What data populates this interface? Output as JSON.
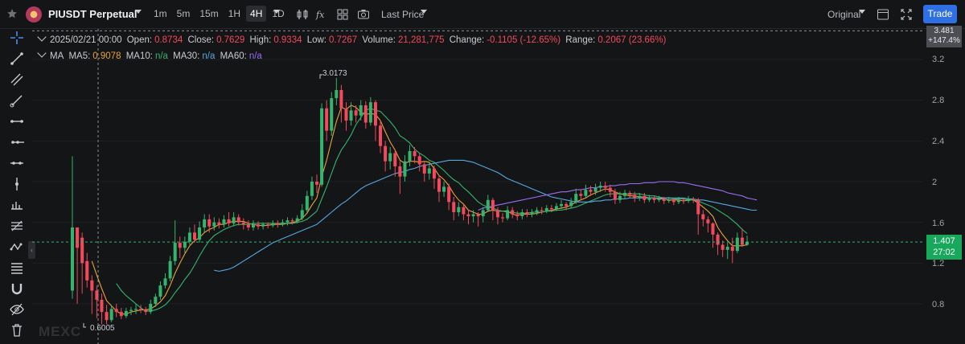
{
  "header": {
    "symbol": "PIUSDT Perpetual",
    "intervals": [
      "1m",
      "5m",
      "15m",
      "1H",
      "4H",
      "1D"
    ],
    "active_interval": "4H",
    "price_type": "Last Price",
    "scale_mode": "Original",
    "trade_label": "Trade"
  },
  "icons": {
    "favorite": "star-icon",
    "candle_type": "candlestick-icon",
    "indicators": "fx-icon",
    "layout": "grid-layout-icon",
    "snapshot": "camera-icon"
  },
  "ohlc": {
    "date": "2025/02/21 00:00",
    "open_label": "Open:",
    "open": "0.8734",
    "close_label": "Close:",
    "close": "0.7629",
    "high_label": "High:",
    "high": "0.9334",
    "low_label": "Low:",
    "low": "0.7267",
    "volume_label": "Volume:",
    "volume": "21,281,775",
    "change_label": "Change:",
    "change": "-0.1105 (-12.65%)",
    "range_label": "Range:",
    "range": "0.2067 (23.66%)"
  },
  "ma": {
    "label": "MA",
    "ma5_label": "MA5:",
    "ma5": "0.9078",
    "ma10_label": "MA10:",
    "ma10": "n/a",
    "ma30_label": "MA30:",
    "ma30": "n/a",
    "ma60_label": "MA60:",
    "ma60": "n/a"
  },
  "price_axis": {
    "ticks": [
      "3.2",
      "2.8",
      "2.4",
      "2",
      "1.6",
      "1.2",
      "0.8"
    ],
    "top_price": "3.481",
    "top_change": "+147.4%",
    "current_price": "1.407",
    "countdown": "27:02"
  },
  "annotations": {
    "high_marker": "3.0173",
    "low_marker": "0.6005"
  },
  "watermark": "MEXC",
  "colors": {
    "up": "#35b46e",
    "down": "#f2495c",
    "ma5": "#e8a33a",
    "ma10": "#35b46e",
    "ma30": "#56a7e0",
    "ma60": "#9b6df0",
    "trade": "#2f6fe4"
  },
  "chart_data": {
    "type": "candlestick",
    "title": "PIUSDT Perpetual",
    "ylim": [
      0.55,
      3.5
    ],
    "y_ticks": [
      3.2,
      2.8,
      2.4,
      2.0,
      1.6,
      1.2,
      0.8
    ],
    "candles": [
      [
        0.93,
        1.55,
        2.25,
        0.85
      ],
      [
        1.55,
        1.35,
        1.55,
        0.8
      ],
      [
        1.45,
        1.2,
        1.5,
        0.9
      ],
      [
        1.22,
        1.03,
        1.3,
        0.96
      ],
      [
        1.03,
        0.93,
        1.08,
        0.7
      ],
      [
        0.93,
        0.84,
        0.98,
        0.66
      ],
      [
        0.84,
        0.72,
        0.9,
        0.6
      ],
      [
        0.72,
        0.64,
        0.79,
        0.6
      ],
      [
        0.64,
        0.75,
        0.78,
        0.62
      ],
      [
        0.75,
        0.72,
        0.8,
        0.67
      ],
      [
        0.72,
        0.68,
        0.76,
        0.65
      ],
      [
        0.68,
        0.73,
        0.76,
        0.66
      ],
      [
        0.73,
        0.74,
        0.77,
        0.69
      ],
      [
        0.74,
        0.75,
        0.8,
        0.7
      ],
      [
        0.75,
        0.74,
        0.79,
        0.71
      ],
      [
        0.74,
        0.72,
        0.77,
        0.69
      ],
      [
        0.72,
        0.8,
        0.84,
        0.7
      ],
      [
        0.8,
        0.87,
        0.9,
        0.77
      ],
      [
        0.87,
        0.98,
        1.02,
        0.84
      ],
      [
        0.98,
        1.05,
        1.1,
        0.95
      ],
      [
        1.05,
        1.22,
        1.27,
        1.02
      ],
      [
        1.22,
        1.4,
        1.62,
        1.18
      ],
      [
        1.4,
        1.35,
        1.46,
        1.25
      ],
      [
        1.35,
        1.41,
        1.46,
        1.3
      ],
      [
        1.41,
        1.5,
        1.55,
        1.38
      ],
      [
        1.5,
        1.43,
        1.58,
        1.4
      ],
      [
        1.43,
        1.55,
        1.61,
        1.4
      ],
      [
        1.55,
        1.63,
        1.68,
        1.5
      ],
      [
        1.63,
        1.56,
        1.68,
        1.5
      ],
      [
        1.56,
        1.6,
        1.65,
        1.52
      ],
      [
        1.6,
        1.58,
        1.64,
        1.54
      ],
      [
        1.58,
        1.63,
        1.67,
        1.55
      ],
      [
        1.63,
        1.59,
        1.7,
        1.56
      ],
      [
        1.59,
        1.65,
        1.7,
        1.56
      ],
      [
        1.65,
        1.6,
        1.68,
        1.57
      ],
      [
        1.6,
        1.58,
        1.64,
        1.53
      ],
      [
        1.58,
        1.55,
        1.62,
        1.52
      ],
      [
        1.55,
        1.58,
        1.62,
        1.52
      ],
      [
        1.58,
        1.56,
        1.61,
        1.53
      ],
      [
        1.56,
        1.58,
        1.6,
        1.53
      ],
      [
        1.58,
        1.57,
        1.6,
        1.54
      ],
      [
        1.57,
        1.59,
        1.62,
        1.55
      ],
      [
        1.59,
        1.58,
        1.62,
        1.55
      ],
      [
        1.58,
        1.6,
        1.63,
        1.56
      ],
      [
        1.6,
        1.62,
        1.65,
        1.57
      ],
      [
        1.62,
        1.61,
        1.64,
        1.58
      ],
      [
        1.61,
        1.64,
        1.67,
        1.59
      ],
      [
        1.64,
        1.72,
        1.78,
        1.62
      ],
      [
        1.72,
        1.86,
        1.91,
        1.7
      ],
      [
        1.86,
        2.0,
        2.05,
        1.82
      ],
      [
        2.0,
        1.97,
        2.07,
        1.89
      ],
      [
        1.97,
        2.72,
        2.77,
        1.95
      ],
      [
        2.72,
        2.5,
        2.8,
        2.4
      ],
      [
        2.5,
        2.82,
        2.88,
        2.45
      ],
      [
        2.82,
        2.9,
        3.02,
        2.75
      ],
      [
        2.9,
        2.72,
        2.95,
        2.58
      ],
      [
        2.72,
        2.6,
        2.78,
        2.5
      ],
      [
        2.6,
        2.7,
        2.78,
        2.55
      ],
      [
        2.7,
        2.65,
        2.75,
        2.58
      ],
      [
        2.65,
        2.75,
        2.8,
        2.6
      ],
      [
        2.75,
        2.58,
        2.79,
        2.52
      ],
      [
        2.58,
        2.78,
        2.83,
        2.55
      ],
      [
        2.78,
        2.55,
        2.8,
        2.4
      ],
      [
        2.55,
        2.35,
        2.6,
        2.28
      ],
      [
        2.35,
        2.2,
        2.4,
        2.1
      ],
      [
        2.2,
        2.28,
        2.34,
        2.12
      ],
      [
        2.28,
        2.15,
        2.32,
        2.05
      ],
      [
        2.15,
        2.05,
        2.2,
        1.88
      ],
      [
        2.05,
        2.2,
        2.26,
        2.0
      ],
      [
        2.2,
        2.3,
        2.36,
        2.15
      ],
      [
        2.3,
        2.25,
        2.34,
        2.18
      ],
      [
        2.25,
        2.17,
        2.28,
        2.1
      ],
      [
        2.17,
        2.08,
        2.2,
        2.0
      ],
      [
        2.08,
        2.13,
        2.18,
        2.02
      ],
      [
        2.13,
        2.03,
        2.16,
        1.93
      ],
      [
        2.03,
        1.9,
        2.06,
        1.8
      ],
      [
        1.9,
        1.95,
        2.0,
        1.85
      ],
      [
        1.95,
        1.8,
        1.98,
        1.72
      ],
      [
        1.8,
        1.7,
        1.85,
        1.62
      ],
      [
        1.7,
        1.75,
        1.8,
        1.66
      ],
      [
        1.75,
        1.68,
        1.78,
        1.62
      ],
      [
        1.68,
        1.66,
        1.72,
        1.58
      ],
      [
        1.66,
        1.68,
        1.72,
        1.6
      ],
      [
        1.68,
        1.66,
        1.7,
        1.56
      ],
      [
        1.66,
        1.72,
        1.75,
        1.6
      ],
      [
        1.72,
        1.82,
        1.87,
        1.7
      ],
      [
        1.82,
        1.72,
        1.84,
        1.62
      ],
      [
        1.72,
        1.65,
        1.75,
        1.58
      ],
      [
        1.65,
        1.64,
        1.69,
        1.6
      ],
      [
        1.64,
        1.72,
        1.76,
        1.62
      ],
      [
        1.72,
        1.68,
        1.75,
        1.64
      ],
      [
        1.68,
        1.66,
        1.71,
        1.62
      ],
      [
        1.66,
        1.7,
        1.73,
        1.63
      ],
      [
        1.7,
        1.68,
        1.73,
        1.65
      ],
      [
        1.68,
        1.7,
        1.73,
        1.65
      ],
      [
        1.7,
        1.72,
        1.75,
        1.67
      ],
      [
        1.72,
        1.71,
        1.75,
        1.68
      ],
      [
        1.71,
        1.74,
        1.77,
        1.69
      ],
      [
        1.74,
        1.73,
        1.77,
        1.7
      ],
      [
        1.73,
        1.76,
        1.79,
        1.71
      ],
      [
        1.76,
        1.78,
        1.82,
        1.73
      ],
      [
        1.78,
        1.76,
        1.8,
        1.72
      ],
      [
        1.76,
        1.8,
        1.84,
        1.74
      ],
      [
        1.8,
        1.88,
        1.93,
        1.78
      ],
      [
        1.88,
        1.86,
        1.92,
        1.82
      ],
      [
        1.86,
        1.92,
        1.97,
        1.84
      ],
      [
        1.92,
        1.9,
        1.96,
        1.86
      ],
      [
        1.9,
        1.94,
        1.98,
        1.87
      ],
      [
        1.94,
        1.96,
        2.0,
        1.9
      ],
      [
        1.96,
        1.94,
        2.0,
        1.9
      ],
      [
        1.94,
        1.9,
        1.97,
        1.85
      ],
      [
        1.9,
        1.82,
        1.93,
        1.78
      ],
      [
        1.82,
        1.86,
        1.9,
        1.79
      ],
      [
        1.86,
        1.89,
        1.92,
        1.83
      ],
      [
        1.89,
        1.87,
        1.91,
        1.84
      ],
      [
        1.87,
        1.84,
        1.9,
        1.8
      ],
      [
        1.84,
        1.86,
        1.89,
        1.81
      ],
      [
        1.86,
        1.82,
        1.89,
        1.79
      ],
      [
        1.82,
        1.84,
        1.87,
        1.8
      ],
      [
        1.84,
        1.82,
        1.86,
        1.79
      ],
      [
        1.82,
        1.83,
        1.86,
        1.8
      ],
      [
        1.83,
        1.81,
        1.85,
        1.78
      ],
      [
        1.81,
        1.82,
        1.85,
        1.79
      ],
      [
        1.82,
        1.8,
        1.84,
        1.77
      ],
      [
        1.8,
        1.82,
        1.85,
        1.78
      ],
      [
        1.82,
        1.81,
        1.84,
        1.78
      ],
      [
        1.81,
        1.83,
        1.86,
        1.79
      ],
      [
        1.83,
        1.82,
        1.85,
        1.79
      ],
      [
        1.82,
        1.68,
        1.84,
        1.48
      ],
      [
        1.68,
        1.63,
        1.72,
        1.56
      ],
      [
        1.63,
        1.59,
        1.66,
        1.5
      ],
      [
        1.59,
        1.48,
        1.6,
        1.35
      ],
      [
        1.48,
        1.38,
        1.5,
        1.28
      ],
      [
        1.38,
        1.33,
        1.42,
        1.26
      ],
      [
        1.33,
        1.36,
        1.4,
        1.24
      ],
      [
        1.36,
        1.32,
        1.45,
        1.2
      ],
      [
        1.32,
        1.45,
        1.5,
        1.3
      ],
      [
        1.45,
        1.38,
        1.54,
        1.36
      ],
      [
        1.38,
        1.41,
        1.47,
        1.37
      ]
    ],
    "ma5": [
      null,
      null,
      null,
      null,
      1.22,
      1.08,
      0.95,
      0.83,
      0.78,
      0.73,
      0.7,
      0.7,
      0.72,
      0.73,
      0.74,
      0.74,
      0.75,
      0.78,
      0.82,
      0.88,
      0.98,
      1.1,
      1.2,
      1.29,
      1.37,
      1.42,
      1.45,
      1.5,
      1.53,
      1.55,
      1.58,
      1.58,
      1.6,
      1.61,
      1.61,
      1.61,
      1.59,
      1.58,
      1.57,
      1.57,
      1.57,
      1.58,
      1.58,
      1.58,
      1.59,
      1.6,
      1.61,
      1.64,
      1.69,
      1.77,
      1.84,
      2.05,
      2.21,
      2.4,
      2.59,
      2.73,
      2.71,
      2.75,
      2.73,
      2.68,
      2.66,
      2.67,
      2.66,
      2.6,
      2.49,
      2.39,
      2.31,
      2.21,
      2.18,
      2.2,
      2.2,
      2.19,
      2.2,
      2.19,
      2.13,
      2.06,
      2.02,
      1.96,
      1.88,
      1.82,
      1.78,
      1.72,
      1.7,
      1.68,
      1.68,
      1.71,
      1.72,
      1.71,
      1.71,
      1.71,
      1.68,
      1.67,
      1.68,
      1.68,
      1.68,
      1.69,
      1.7,
      1.71,
      1.72,
      1.73,
      1.74,
      1.75,
      1.77,
      1.8,
      1.82,
      1.84,
      1.87,
      1.89,
      1.91,
      1.93,
      1.92,
      1.9,
      1.88,
      1.87,
      1.86,
      1.86,
      1.85,
      1.85,
      1.84,
      1.84,
      1.83,
      1.83,
      1.82,
      1.82,
      1.82,
      1.81,
      1.82,
      1.82,
      1.79,
      1.75,
      1.71,
      1.66,
      1.55,
      1.48,
      1.42,
      1.37,
      1.37,
      1.37,
      1.38
    ],
    "ma10": [
      null,
      null,
      null,
      null,
      null,
      null,
      null,
      null,
      null,
      1.0,
      0.93,
      0.88,
      0.84,
      0.8,
      0.76,
      0.73,
      0.73,
      0.74,
      0.76,
      0.79,
      0.84,
      0.91,
      0.97,
      1.04,
      1.1,
      1.18,
      1.27,
      1.35,
      1.42,
      1.47,
      1.5,
      1.53,
      1.55,
      1.57,
      1.58,
      1.58,
      1.58,
      1.59,
      1.59,
      1.59,
      1.59,
      1.59,
      1.59,
      1.59,
      1.59,
      1.59,
      1.6,
      1.61,
      1.63,
      1.67,
      1.71,
      1.83,
      1.95,
      2.08,
      2.21,
      2.31,
      2.38,
      2.46,
      2.56,
      2.63,
      2.7,
      2.72,
      2.7,
      2.69,
      2.64,
      2.59,
      2.53,
      2.45,
      2.42,
      2.38,
      2.32,
      2.28,
      2.25,
      2.21,
      2.19,
      2.15,
      2.11,
      2.06,
      2.02,
      1.99,
      1.94,
      1.9,
      1.85,
      1.8,
      1.77,
      1.75,
      1.74,
      1.72,
      1.71,
      1.7,
      1.7,
      1.69,
      1.69,
      1.69,
      1.7,
      1.7,
      1.7,
      1.71,
      1.71,
      1.72,
      1.72,
      1.73,
      1.74,
      1.75,
      1.77,
      1.79,
      1.81,
      1.83,
      1.85,
      1.87,
      1.88,
      1.88,
      1.88,
      1.88,
      1.88,
      1.88,
      1.88,
      1.87,
      1.86,
      1.86,
      1.85,
      1.84,
      1.84,
      1.83,
      1.83,
      1.83,
      1.82,
      1.82,
      1.81,
      1.79,
      1.77,
      1.75,
      1.72,
      1.69,
      1.66,
      1.62,
      1.58,
      1.53,
      1.49
    ],
    "ma30": [
      null,
      null,
      null,
      null,
      null,
      null,
      null,
      null,
      null,
      null,
      null,
      null,
      null,
      null,
      null,
      null,
      null,
      null,
      null,
      null,
      null,
      null,
      null,
      null,
      null,
      null,
      null,
      null,
      null,
      1.13,
      1.12,
      1.13,
      1.14,
      1.16,
      1.19,
      1.22,
      1.25,
      1.28,
      1.31,
      1.34,
      1.37,
      1.4,
      1.42,
      1.44,
      1.46,
      1.48,
      1.5,
      1.52,
      1.54,
      1.56,
      1.58,
      1.62,
      1.66,
      1.7,
      1.74,
      1.78,
      1.81,
      1.85,
      1.89,
      1.93,
      1.96,
      1.98,
      2.0,
      2.02,
      2.04,
      2.06,
      2.08,
      2.09,
      2.1,
      2.12,
      2.13,
      2.15,
      2.16,
      2.17,
      2.18,
      2.19,
      2.2,
      2.21,
      2.21,
      2.21,
      2.21,
      2.2,
      2.19,
      2.17,
      2.15,
      2.13,
      2.11,
      2.09,
      2.06,
      2.03,
      2.01,
      1.99,
      1.97,
      1.95,
      1.93,
      1.91,
      1.89,
      1.87,
      1.85,
      1.84,
      1.83,
      1.82,
      1.81,
      1.8,
      1.8,
      1.8,
      1.8,
      1.81,
      1.81,
      1.82,
      1.82,
      1.83,
      1.83,
      1.83,
      1.84,
      1.84,
      1.84,
      1.84,
      1.84,
      1.84,
      1.84,
      1.84,
      1.84,
      1.84,
      1.84,
      1.84,
      1.83,
      1.83,
      1.82,
      1.82,
      1.81,
      1.8,
      1.79,
      1.78,
      1.77,
      1.76,
      1.75,
      1.74,
      1.73,
      1.72,
      1.72
    ],
    "ma60": [
      null,
      null,
      null,
      null,
      null,
      null,
      null,
      null,
      null,
      null,
      null,
      null,
      null,
      null,
      null,
      null,
      null,
      null,
      null,
      null,
      null,
      null,
      null,
      null,
      null,
      null,
      null,
      null,
      null,
      null,
      null,
      null,
      null,
      null,
      null,
      null,
      null,
      null,
      null,
      null,
      null,
      null,
      null,
      null,
      null,
      null,
      null,
      null,
      null,
      null,
      null,
      null,
      null,
      null,
      null,
      null,
      null,
      null,
      null,
      null,
      null,
      null,
      null,
      null,
      null,
      null,
      null,
      null,
      null,
      null,
      null,
      null,
      null,
      null,
      null,
      null,
      null,
      null,
      null,
      null,
      null,
      null,
      null,
      1.72,
      1.74,
      1.75,
      1.76,
      1.77,
      1.78,
      1.79,
      1.8,
      1.81,
      1.82,
      1.83,
      1.84,
      1.85,
      1.86,
      1.87,
      1.88,
      1.89,
      1.9,
      1.9,
      1.91,
      1.92,
      1.92,
      1.93,
      1.94,
      1.94,
      1.95,
      1.95,
      1.96,
      1.96,
      1.97,
      1.97,
      1.98,
      1.98,
      1.98,
      1.99,
      1.99,
      1.99,
      2.0,
      2.0,
      2.0,
      2.0,
      1.99,
      1.99,
      1.98,
      1.97,
      1.96,
      1.95,
      1.94,
      1.93,
      1.92,
      1.91,
      1.89,
      1.88,
      1.87,
      1.86,
      1.84,
      1.83,
      1.82
    ]
  }
}
